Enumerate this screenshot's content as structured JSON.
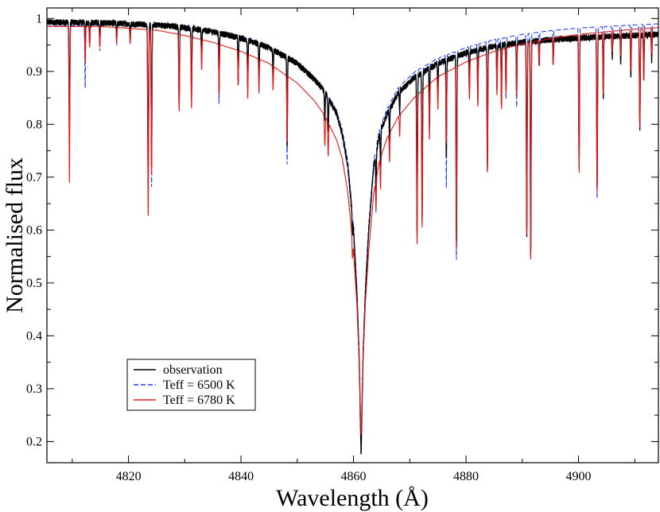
{
  "chart_data": {
    "type": "line",
    "title": "",
    "xlabel": "Wavelength (Å)",
    "ylabel": "Normalised flux",
    "xlim": [
      4805.5,
      4914.2
    ],
    "ylim": [
      0.16,
      1.02
    ],
    "xticks": [
      4820,
      4840,
      4860,
      4880,
      4900
    ],
    "yticks": [
      0.2,
      0.3,
      0.4,
      0.5,
      0.6,
      0.7,
      0.8,
      0.9,
      1
    ],
    "grid": false,
    "legend_position": "bottom-left",
    "series": [
      {
        "name": "observation",
        "color": "#000000",
        "dash": "solid",
        "noise": 0.006,
        "continuum": [
          [
            4805.5,
            0.993
          ],
          [
            4815,
            0.992
          ],
          [
            4825,
            0.988
          ],
          [
            4830,
            0.983
          ],
          [
            4835,
            0.975
          ],
          [
            4840,
            0.963
          ],
          [
            4845,
            0.945
          ],
          [
            4850,
            0.915
          ],
          [
            4853,
            0.885
          ],
          [
            4855,
            0.86
          ],
          [
            4857,
            0.82
          ],
          [
            4858,
            0.78
          ],
          [
            4859,
            0.72
          ],
          [
            4860,
            0.6
          ],
          [
            4860.6,
            0.48
          ],
          [
            4861.0,
            0.36
          ],
          [
            4861.35,
            0.17
          ],
          [
            4861.7,
            0.36
          ],
          [
            4862.1,
            0.48
          ],
          [
            4862.7,
            0.6
          ],
          [
            4863.6,
            0.72
          ],
          [
            4864.6,
            0.78
          ],
          [
            4866,
            0.82
          ],
          [
            4868,
            0.86
          ],
          [
            4871,
            0.89
          ],
          [
            4875,
            0.915
          ],
          [
            4880,
            0.935
          ],
          [
            4885,
            0.948
          ],
          [
            4890,
            0.955
          ],
          [
            4895,
            0.96
          ],
          [
            4900,
            0.963
          ],
          [
            4905,
            0.966
          ],
          [
            4910,
            0.968
          ],
          [
            4914.2,
            0.97
          ]
        ],
        "lines": [
          [
            4809.5,
            0.21,
            0.07
          ],
          [
            4812.3,
            0.06,
            0.06
          ],
          [
            4813.1,
            0.04,
            0.06
          ],
          [
            4814.9,
            0.04,
            0.06
          ],
          [
            4817.9,
            0.03,
            0.06
          ],
          [
            4820.3,
            0.03,
            0.06
          ],
          [
            4823.5,
            0.3,
            0.08
          ],
          [
            4824.1,
            0.27,
            0.07
          ],
          [
            4829.0,
            0.15,
            0.07
          ],
          [
            4831.2,
            0.13,
            0.07
          ],
          [
            4833.0,
            0.06,
            0.06
          ],
          [
            4836.1,
            0.11,
            0.06
          ],
          [
            4839.5,
            0.09,
            0.06
          ],
          [
            4841.2,
            0.09,
            0.06
          ],
          [
            4843.2,
            0.07,
            0.06
          ],
          [
            4845.7,
            0.05,
            0.06
          ],
          [
            4848.2,
            0.18,
            0.06
          ],
          [
            4854.9,
            0.06,
            0.07
          ],
          [
            4855.5,
            0.07,
            0.07
          ],
          [
            4859.8,
            0.05,
            0.06
          ],
          [
            4864.0,
            0.1,
            0.06
          ],
          [
            4864.8,
            0.09,
            0.06
          ],
          [
            4866.4,
            0.07,
            0.06
          ],
          [
            4868.2,
            0.05,
            0.06
          ],
          [
            4871.3,
            0.34,
            0.07
          ],
          [
            4872.2,
            0.31,
            0.07
          ],
          [
            4873.5,
            0.12,
            0.06
          ],
          [
            4875.0,
            0.07,
            0.06
          ],
          [
            4876.5,
            0.2,
            0.06
          ],
          [
            4878.3,
            0.38,
            0.07
          ],
          [
            4880.6,
            0.08,
            0.06
          ],
          [
            4882.1,
            0.1,
            0.06
          ],
          [
            4883.8,
            0.24,
            0.07
          ],
          [
            4885.5,
            0.09,
            0.06
          ],
          [
            4886.3,
            0.12,
            0.06
          ],
          [
            4887.1,
            0.09,
            0.06
          ],
          [
            4889.0,
            0.11,
            0.06
          ],
          [
            4890.8,
            0.38,
            0.07
          ],
          [
            4891.5,
            0.42,
            0.07
          ],
          [
            4893.0,
            0.05,
            0.06
          ],
          [
            4895.5,
            0.05,
            0.06
          ],
          [
            4900.1,
            0.25,
            0.07
          ],
          [
            4903.3,
            0.3,
            0.07
          ],
          [
            4904.4,
            0.12,
            0.06
          ],
          [
            4906.0,
            0.04,
            0.06
          ],
          [
            4907.5,
            0.05,
            0.06
          ],
          [
            4909.3,
            0.08,
            0.06
          ],
          [
            4910.9,
            0.18,
            0.07
          ],
          [
            4911.6,
            0.09,
            0.06
          ],
          [
            4913.0,
            0.05,
            0.06
          ]
        ]
      },
      {
        "name": "Teff = 6500 K",
        "color": "#1f3fff",
        "dash": "dashed",
        "noise": 0,
        "continuum": [
          [
            4805.5,
            0.985
          ],
          [
            4815,
            0.988
          ],
          [
            4825,
            0.988
          ],
          [
            4830,
            0.985
          ],
          [
            4835,
            0.978
          ],
          [
            4840,
            0.966
          ],
          [
            4845,
            0.948
          ],
          [
            4850,
            0.918
          ],
          [
            4853,
            0.89
          ],
          [
            4855,
            0.865
          ],
          [
            4857,
            0.825
          ],
          [
            4858,
            0.79
          ],
          [
            4859,
            0.73
          ],
          [
            4860,
            0.61
          ],
          [
            4860.6,
            0.49
          ],
          [
            4861.0,
            0.37
          ],
          [
            4861.35,
            0.2
          ],
          [
            4861.7,
            0.37
          ],
          [
            4862.1,
            0.49
          ],
          [
            4862.7,
            0.61
          ],
          [
            4863.6,
            0.73
          ],
          [
            4864.6,
            0.79
          ],
          [
            4866,
            0.83
          ],
          [
            4868,
            0.87
          ],
          [
            4871,
            0.9
          ],
          [
            4875,
            0.925
          ],
          [
            4880,
            0.945
          ],
          [
            4885,
            0.96
          ],
          [
            4890,
            0.97
          ],
          [
            4895,
            0.977
          ],
          [
            4900,
            0.982
          ],
          [
            4905,
            0.985
          ],
          [
            4910,
            0.988
          ],
          [
            4914.2,
            0.99
          ]
        ],
        "lines": [
          [
            4809.5,
            0.2,
            0.07
          ],
          [
            4812.3,
            0.12,
            0.06
          ],
          [
            4813.1,
            0.04,
            0.06
          ],
          [
            4814.9,
            0.05,
            0.06
          ],
          [
            4817.9,
            0.04,
            0.06
          ],
          [
            4820.3,
            0.03,
            0.06
          ],
          [
            4823.5,
            0.3,
            0.08
          ],
          [
            4824.1,
            0.31,
            0.07
          ],
          [
            4829.0,
            0.14,
            0.07
          ],
          [
            4831.2,
            0.12,
            0.07
          ],
          [
            4833.0,
            0.07,
            0.06
          ],
          [
            4836.1,
            0.14,
            0.06
          ],
          [
            4839.5,
            0.09,
            0.06
          ],
          [
            4841.2,
            0.09,
            0.06
          ],
          [
            4843.2,
            0.07,
            0.06
          ],
          [
            4845.7,
            0.05,
            0.06
          ],
          [
            4848.2,
            0.22,
            0.06
          ],
          [
            4854.9,
            0.06,
            0.07
          ],
          [
            4855.5,
            0.07,
            0.07
          ],
          [
            4859.8,
            0.05,
            0.06
          ],
          [
            4864.0,
            0.16,
            0.06
          ],
          [
            4864.8,
            0.09,
            0.06
          ],
          [
            4866.4,
            0.07,
            0.06
          ],
          [
            4868.2,
            0.05,
            0.06
          ],
          [
            4871.3,
            0.32,
            0.07
          ],
          [
            4872.2,
            0.3,
            0.07
          ],
          [
            4873.5,
            0.12,
            0.06
          ],
          [
            4875.0,
            0.07,
            0.06
          ],
          [
            4876.5,
            0.27,
            0.06
          ],
          [
            4878.3,
            0.42,
            0.07
          ],
          [
            4880.6,
            0.08,
            0.06
          ],
          [
            4882.1,
            0.1,
            0.06
          ],
          [
            4883.8,
            0.24,
            0.07
          ],
          [
            4885.5,
            0.1,
            0.06
          ],
          [
            4886.3,
            0.13,
            0.06
          ],
          [
            4887.1,
            0.12,
            0.06
          ],
          [
            4889.0,
            0.14,
            0.06
          ],
          [
            4890.8,
            0.38,
            0.07
          ],
          [
            4891.5,
            0.42,
            0.07
          ],
          [
            4893.0,
            0.05,
            0.06
          ],
          [
            4895.5,
            0.05,
            0.06
          ],
          [
            4900.1,
            0.26,
            0.07
          ],
          [
            4903.3,
            0.33,
            0.07
          ],
          [
            4904.4,
            0.13,
            0.06
          ],
          [
            4906.0,
            0.04,
            0.06
          ],
          [
            4907.5,
            0.05,
            0.06
          ],
          [
            4909.3,
            0.08,
            0.06
          ],
          [
            4910.9,
            0.2,
            0.07
          ],
          [
            4911.6,
            0.1,
            0.06
          ],
          [
            4913.0,
            0.05,
            0.06
          ]
        ]
      },
      {
        "name": "Teff = 6780 K",
        "color": "#e51a1a",
        "dash": "solid",
        "noise": 0,
        "continuum": [
          [
            4805.5,
            0.985
          ],
          [
            4815,
            0.985
          ],
          [
            4825,
            0.978
          ],
          [
            4830,
            0.968
          ],
          [
            4835,
            0.955
          ],
          [
            4840,
            0.938
          ],
          [
            4845,
            0.915
          ],
          [
            4850,
            0.878
          ],
          [
            4853,
            0.845
          ],
          [
            4855,
            0.815
          ],
          [
            4857,
            0.77
          ],
          [
            4858,
            0.735
          ],
          [
            4859,
            0.67
          ],
          [
            4860,
            0.56
          ],
          [
            4860.6,
            0.46
          ],
          [
            4861.0,
            0.35
          ],
          [
            4861.35,
            0.21
          ],
          [
            4861.7,
            0.35
          ],
          [
            4862.1,
            0.46
          ],
          [
            4862.7,
            0.56
          ],
          [
            4863.6,
            0.67
          ],
          [
            4864.6,
            0.73
          ],
          [
            4866,
            0.775
          ],
          [
            4868,
            0.815
          ],
          [
            4871,
            0.853
          ],
          [
            4875,
            0.89
          ],
          [
            4880,
            0.918
          ],
          [
            4885,
            0.938
          ],
          [
            4890,
            0.952
          ],
          [
            4895,
            0.962
          ],
          [
            4900,
            0.97
          ],
          [
            4905,
            0.975
          ],
          [
            4910,
            0.98
          ],
          [
            4914.2,
            0.983
          ]
        ],
        "lines": [
          [
            4809.5,
            0.3,
            0.07
          ],
          [
            4812.3,
            0.07,
            0.06
          ],
          [
            4813.1,
            0.04,
            0.06
          ],
          [
            4814.9,
            0.04,
            0.06
          ],
          [
            4817.9,
            0.03,
            0.06
          ],
          [
            4820.3,
            0.03,
            0.06
          ],
          [
            4823.5,
            0.36,
            0.08
          ],
          [
            4824.1,
            0.28,
            0.07
          ],
          [
            4829.0,
            0.15,
            0.07
          ],
          [
            4831.2,
            0.14,
            0.07
          ],
          [
            4833.0,
            0.06,
            0.06
          ],
          [
            4836.1,
            0.1,
            0.06
          ],
          [
            4839.5,
            0.07,
            0.06
          ],
          [
            4841.2,
            0.09,
            0.06
          ],
          [
            4843.2,
            0.07,
            0.06
          ],
          [
            4845.7,
            0.05,
            0.06
          ],
          [
            4848.2,
            0.14,
            0.06
          ],
          [
            4854.9,
            0.07,
            0.07
          ],
          [
            4855.5,
            0.08,
            0.07
          ],
          [
            4859.8,
            0.06,
            0.06
          ],
          [
            4864.0,
            0.08,
            0.06
          ],
          [
            4864.8,
            0.08,
            0.06
          ],
          [
            4866.4,
            0.07,
            0.06
          ],
          [
            4868.2,
            0.05,
            0.06
          ],
          [
            4871.3,
            0.33,
            0.07
          ],
          [
            4872.2,
            0.3,
            0.07
          ],
          [
            4873.5,
            0.12,
            0.06
          ],
          [
            4875.0,
            0.07,
            0.06
          ],
          [
            4876.5,
            0.15,
            0.06
          ],
          [
            4878.3,
            0.38,
            0.07
          ],
          [
            4880.6,
            0.08,
            0.06
          ],
          [
            4882.1,
            0.1,
            0.06
          ],
          [
            4883.8,
            0.24,
            0.07
          ],
          [
            4885.5,
            0.09,
            0.06
          ],
          [
            4886.3,
            0.12,
            0.06
          ],
          [
            4887.1,
            0.09,
            0.06
          ],
          [
            4889.0,
            0.1,
            0.06
          ],
          [
            4890.8,
            0.38,
            0.07
          ],
          [
            4891.5,
            0.43,
            0.07
          ],
          [
            4893.0,
            0.05,
            0.06
          ],
          [
            4895.5,
            0.05,
            0.06
          ],
          [
            4900.1,
            0.27,
            0.07
          ],
          [
            4903.3,
            0.31,
            0.07
          ],
          [
            4904.4,
            0.12,
            0.06
          ],
          [
            4906.0,
            0.04,
            0.06
          ],
          [
            4907.5,
            0.05,
            0.06
          ],
          [
            4909.3,
            0.08,
            0.06
          ],
          [
            4910.9,
            0.19,
            0.07
          ],
          [
            4911.6,
            0.1,
            0.06
          ],
          [
            4913.0,
            0.05,
            0.06
          ]
        ]
      }
    ]
  }
}
